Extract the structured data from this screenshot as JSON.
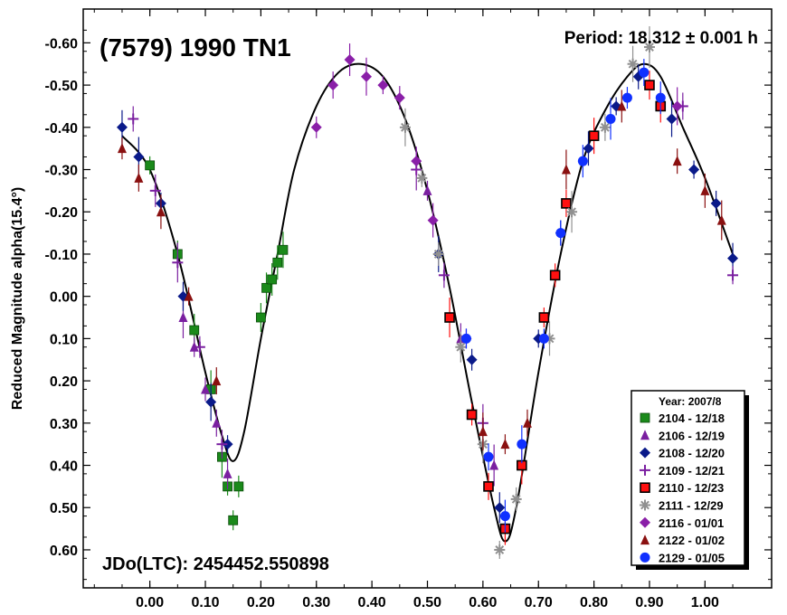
{
  "chart_data": {
    "type": "scatter",
    "title": "(7579) 1990 TN1",
    "period_label": "Period: 18.312 ± 0.001 h",
    "epoch_label": "JDo(LTC): 2454452.550898",
    "xlabel": "",
    "ylabel": "Reduced Magnitude alpha(15.4°)",
    "xlim": [
      -0.12,
      1.12
    ],
    "ylim": [
      -0.68,
      0.69
    ],
    "y_inverted": true,
    "x_ticks": [
      "0.00",
      "0.10",
      "0.20",
      "0.30",
      "0.40",
      "0.50",
      "0.60",
      "0.70",
      "0.80",
      "0.90",
      "1.00"
    ],
    "y_ticks": [
      "-0.60",
      "-0.50",
      "-0.40",
      "-0.30",
      "-0.20",
      "-0.10",
      "0.00",
      "0.10",
      "0.20",
      "0.30",
      "0.40",
      "0.50",
      "0.60"
    ],
    "legend": {
      "title": "Year: 2007/8",
      "placement": "bottom-right",
      "entries": [
        {
          "label": "2104 - 12/18",
          "marker": "square",
          "color": "#1a8a1a"
        },
        {
          "label": "2106 - 12/19",
          "marker": "triangle",
          "color": "#7a1fa0"
        },
        {
          "label": "2108 - 12/20",
          "marker": "diamond",
          "color": "#0a1a8a"
        },
        {
          "label": "2109 - 12/21",
          "marker": "plus",
          "color": "#7a1fa0"
        },
        {
          "label": "2110 - 12/23",
          "marker": "square-red",
          "color": "#ff1010"
        },
        {
          "label": "2111 - 12/29",
          "marker": "asterisk",
          "color": "#909090"
        },
        {
          "label": "2116 - 01/01",
          "marker": "diamond",
          "color": "#8a1fa8"
        },
        {
          "label": "2122 - 01/02",
          "marker": "triangle",
          "color": "#8a1010"
        },
        {
          "label": "2129 - 01/05",
          "marker": "circle",
          "color": "#1030ff"
        }
      ]
    },
    "fit_curve": [
      [
        -0.05,
        -0.38
      ],
      [
        0.0,
        -0.3
      ],
      [
        0.05,
        -0.1
      ],
      [
        0.1,
        0.18
      ],
      [
        0.13,
        0.33
      ],
      [
        0.15,
        0.39
      ],
      [
        0.17,
        0.32
      ],
      [
        0.2,
        0.1
      ],
      [
        0.23,
        -0.1
      ],
      [
        0.26,
        -0.3
      ],
      [
        0.3,
        -0.45
      ],
      [
        0.34,
        -0.53
      ],
      [
        0.38,
        -0.55
      ],
      [
        0.42,
        -0.52
      ],
      [
        0.46,
        -0.42
      ],
      [
        0.5,
        -0.25
      ],
      [
        0.54,
        -0.02
      ],
      [
        0.58,
        0.25
      ],
      [
        0.62,
        0.5
      ],
      [
        0.64,
        0.58
      ],
      [
        0.66,
        0.5
      ],
      [
        0.7,
        0.18
      ],
      [
        0.74,
        -0.1
      ],
      [
        0.78,
        -0.32
      ],
      [
        0.82,
        -0.44
      ],
      [
        0.86,
        -0.52
      ],
      [
        0.89,
        -0.55
      ],
      [
        0.92,
        -0.52
      ],
      [
        0.96,
        -0.4
      ],
      [
        1.0,
        -0.28
      ],
      [
        1.05,
        -0.1
      ]
    ],
    "series": [
      {
        "name": "2104 - 12/18",
        "points": [
          [
            0.0,
            -0.31
          ],
          [
            0.05,
            -0.1
          ],
          [
            0.08,
            0.08
          ],
          [
            0.11,
            0.22
          ],
          [
            0.13,
            0.38
          ],
          [
            0.14,
            0.45
          ],
          [
            0.15,
            0.53
          ],
          [
            0.16,
            0.45
          ],
          [
            0.2,
            0.05
          ],
          [
            0.21,
            -0.02
          ],
          [
            0.22,
            -0.04
          ],
          [
            0.23,
            -0.08
          ],
          [
            0.24,
            -0.11
          ]
        ]
      },
      {
        "name": "2106 - 12/19",
        "points": [
          [
            0.06,
            0.05
          ],
          [
            0.08,
            0.12
          ],
          [
            0.1,
            0.22
          ],
          [
            0.12,
            0.3
          ],
          [
            0.14,
            0.42
          ],
          [
            0.5,
            -0.25
          ],
          [
            0.56,
            0.1
          ],
          [
            0.62,
            0.4
          ]
        ]
      },
      {
        "name": "2108 - 12/20",
        "points": [
          [
            -0.05,
            -0.4
          ],
          [
            -0.02,
            -0.33
          ],
          [
            0.02,
            -0.22
          ],
          [
            0.06,
            0.0
          ],
          [
            0.11,
            0.25
          ],
          [
            0.14,
            0.35
          ],
          [
            0.52,
            -0.1
          ],
          [
            0.58,
            0.15
          ],
          [
            0.63,
            0.5
          ],
          [
            0.7,
            0.1
          ],
          [
            0.74,
            -0.15
          ],
          [
            0.79,
            -0.35
          ],
          [
            0.84,
            -0.45
          ],
          [
            0.88,
            -0.52
          ],
          [
            0.94,
            -0.42
          ],
          [
            0.98,
            -0.3
          ],
          [
            1.02,
            -0.22
          ],
          [
            1.05,
            -0.09
          ]
        ]
      },
      {
        "name": "2109 - 12/21",
        "points": [
          [
            -0.03,
            -0.42
          ],
          [
            0.01,
            -0.25
          ],
          [
            0.05,
            -0.08
          ],
          [
            0.09,
            0.12
          ],
          [
            0.13,
            0.35
          ],
          [
            0.48,
            -0.3
          ],
          [
            0.53,
            -0.05
          ],
          [
            0.6,
            0.3
          ],
          [
            0.96,
            -0.45
          ],
          [
            1.05,
            -0.05
          ]
        ]
      },
      {
        "name": "2110 - 12/23",
        "points": [
          [
            0.54,
            0.05
          ],
          [
            0.58,
            0.28
          ],
          [
            0.61,
            0.45
          ],
          [
            0.64,
            0.55
          ],
          [
            0.67,
            0.4
          ],
          [
            0.71,
            0.05
          ],
          [
            0.73,
            -0.05
          ],
          [
            0.75,
            -0.22
          ],
          [
            0.8,
            -0.38
          ],
          [
            0.9,
            -0.5
          ],
          [
            0.92,
            -0.45
          ]
        ]
      },
      {
        "name": "2111 - 12/29",
        "points": [
          [
            0.46,
            -0.4
          ],
          [
            0.49,
            -0.28
          ],
          [
            0.52,
            -0.1
          ],
          [
            0.56,
            0.12
          ],
          [
            0.6,
            0.35
          ],
          [
            0.63,
            0.6
          ],
          [
            0.66,
            0.48
          ],
          [
            0.72,
            0.1
          ],
          [
            0.76,
            -0.2
          ],
          [
            0.82,
            -0.4
          ],
          [
            0.87,
            -0.55
          ],
          [
            0.9,
            -0.59
          ]
        ]
      },
      {
        "name": "2116 - 01/01",
        "points": [
          [
            0.3,
            -0.4
          ],
          [
            0.33,
            -0.5
          ],
          [
            0.36,
            -0.56
          ],
          [
            0.39,
            -0.52
          ],
          [
            0.42,
            -0.5
          ],
          [
            0.45,
            -0.47
          ],
          [
            0.48,
            -0.32
          ],
          [
            0.51,
            -0.18
          ],
          [
            0.57,
            0.1
          ],
          [
            0.95,
            -0.45
          ]
        ]
      },
      {
        "name": "2122 - 01/02",
        "points": [
          [
            -0.05,
            -0.35
          ],
          [
            -0.02,
            -0.28
          ],
          [
            0.02,
            -0.2
          ],
          [
            0.07,
            0.0
          ],
          [
            0.12,
            0.2
          ],
          [
            0.6,
            0.32
          ],
          [
            0.64,
            0.35
          ],
          [
            0.68,
            0.3
          ],
          [
            0.75,
            -0.3
          ],
          [
            0.85,
            -0.45
          ],
          [
            0.95,
            -0.32
          ],
          [
            1.0,
            -0.25
          ],
          [
            1.03,
            -0.18
          ]
        ]
      },
      {
        "name": "2129 - 01/05",
        "points": [
          [
            0.57,
            0.1
          ],
          [
            0.61,
            0.38
          ],
          [
            0.64,
            0.52
          ],
          [
            0.67,
            0.35
          ],
          [
            0.71,
            0.1
          ],
          [
            0.74,
            -0.15
          ],
          [
            0.78,
            -0.32
          ],
          [
            0.83,
            -0.42
          ],
          [
            0.86,
            -0.47
          ],
          [
            0.89,
            -0.53
          ],
          [
            0.92,
            -0.47
          ]
        ]
      }
    ]
  }
}
